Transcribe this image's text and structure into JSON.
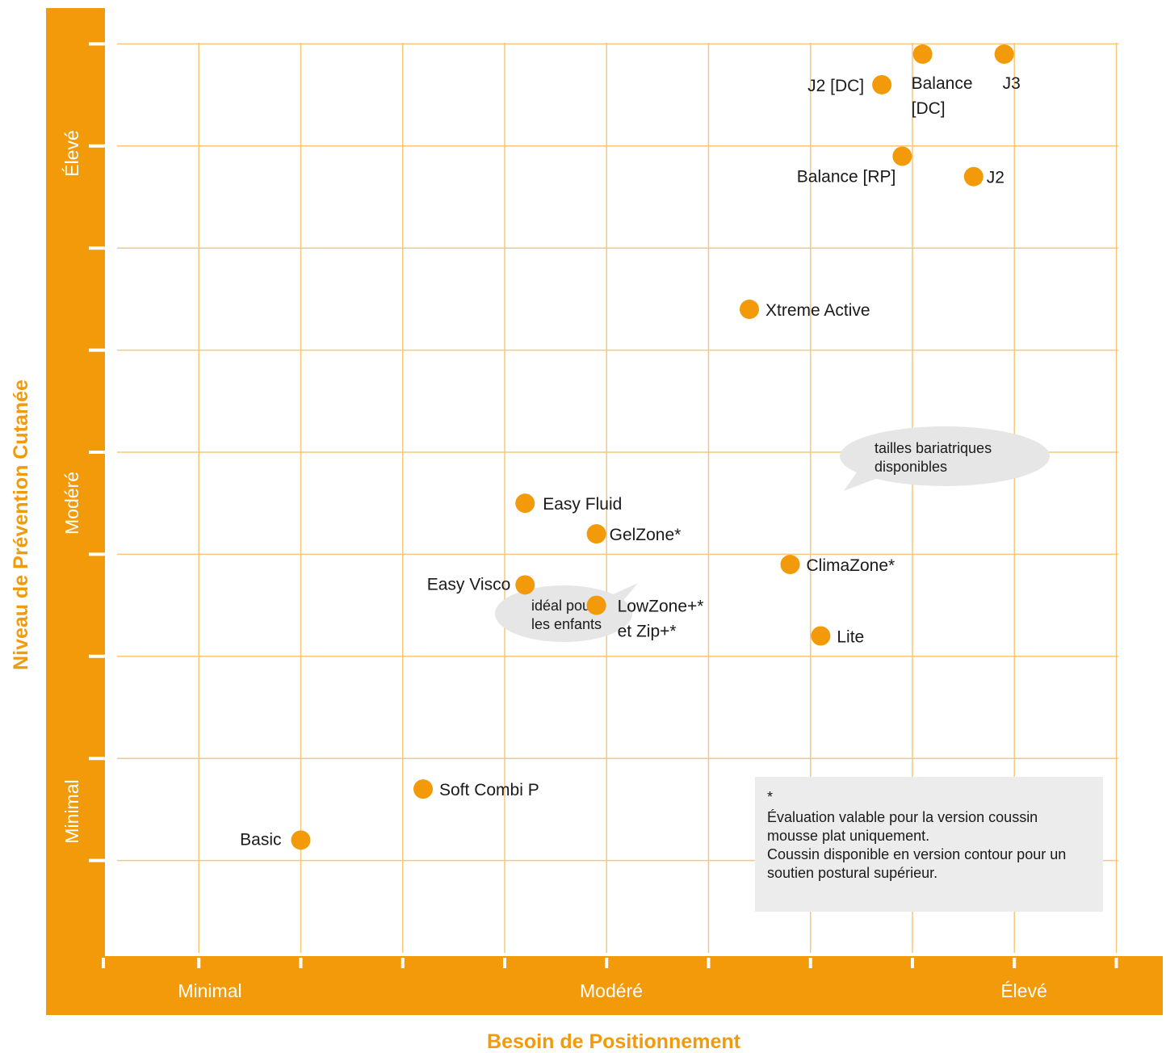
{
  "colors": {
    "accent": "#f29a09",
    "grid": "#f8c77a",
    "note_bg": "#ececec",
    "bubble_bg": "#e6e6e6"
  },
  "chart_data": {
    "type": "scatter",
    "xlabel": "Besoin de Positionnement",
    "ylabel": "Niveau de Prévention Cutanée",
    "x_bands": [
      "Minimal",
      "Modéré",
      "Élevé"
    ],
    "y_bands": [
      "Minimal",
      "Modéré",
      "Élevé"
    ],
    "xlim": [
      0,
      10
    ],
    "ylim": [
      0,
      9
    ],
    "grid": true,
    "points": [
      {
        "name": "Balance [DC]",
        "x": 8.1,
        "y": 8.9
      },
      {
        "name": "J3",
        "x": 8.9,
        "y": 8.9
      },
      {
        "name": "J2 [DC]",
        "x": 7.7,
        "y": 8.6
      },
      {
        "name": "Balance [RP]",
        "x": 7.9,
        "y": 7.9
      },
      {
        "name": "J2",
        "x": 8.6,
        "y": 7.7
      },
      {
        "name": "Xtreme Active",
        "x": 6.4,
        "y": 6.4
      },
      {
        "name": "Easy Fluid",
        "x": 4.2,
        "y": 4.5
      },
      {
        "name": "GelZone*",
        "x": 4.9,
        "y": 4.2
      },
      {
        "name": "ClimaZone*",
        "x": 6.8,
        "y": 3.9
      },
      {
        "name": "Easy Visco",
        "x": 4.2,
        "y": 3.7
      },
      {
        "name": "LowZone+* et Zip+*",
        "x": 4.9,
        "y": 3.5
      },
      {
        "name": "Lite",
        "x": 7.1,
        "y": 3.2
      },
      {
        "name": "Soft Combi P",
        "x": 3.2,
        "y": 1.7
      },
      {
        "name": "Basic",
        "x": 2.0,
        "y": 1.2
      }
    ],
    "annotations": {
      "bubble_kids": [
        "idéal pour",
        "les enfants"
      ],
      "bubble_bariatric": [
        "tailles bariatriques",
        "disponibles"
      ],
      "note": [
        "*",
        "Évaluation valable pour la version coussin",
        "mousse plat uniquement.",
        "Coussin disponible en version contour pour un",
        "soutien postural supérieur."
      ]
    }
  }
}
